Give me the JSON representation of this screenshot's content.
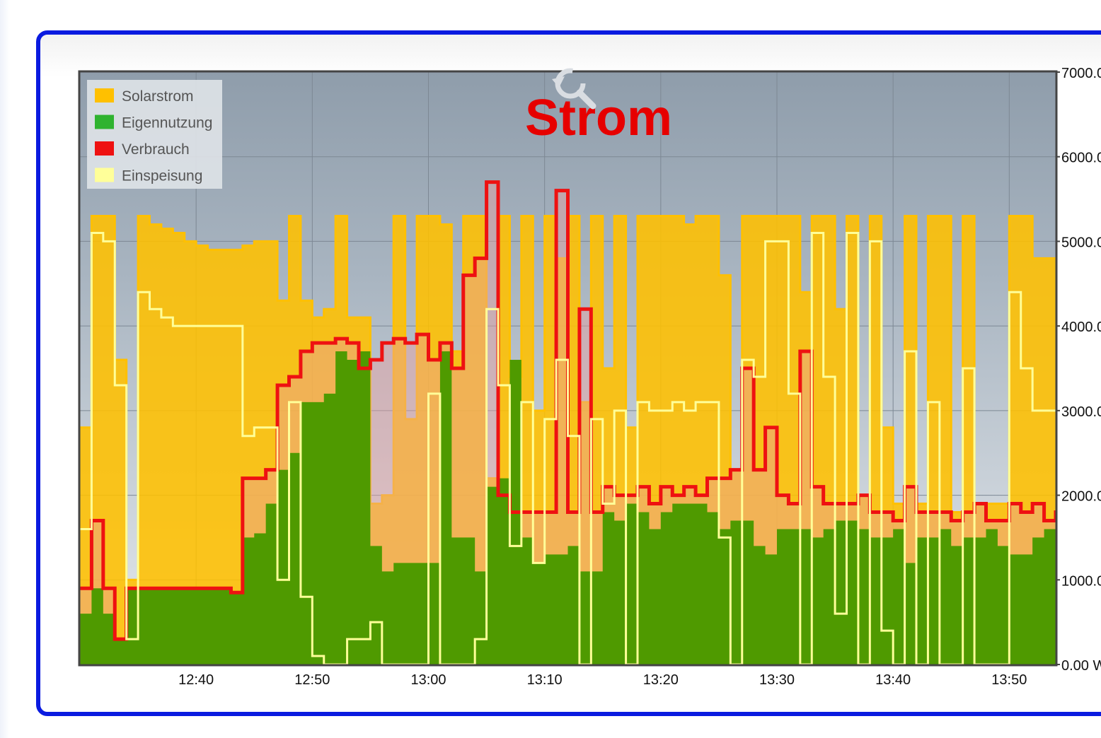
{
  "chart_data": {
    "type": "area",
    "title": "Strom",
    "xlabel": "",
    "ylabel": "",
    "x_ticks": [
      "12:40",
      "12:50",
      "13:00",
      "13:10",
      "13:20",
      "13:30",
      "13:40",
      "13:50"
    ],
    "xlim": [
      "12:30",
      "13:54"
    ],
    "y_ticks": [
      "0.00 W",
      "1000.0",
      "2000.0",
      "3000.0",
      "4000.0",
      "5000.0",
      "6000.0",
      "7000.0"
    ],
    "ylim": [
      0,
      7000
    ],
    "grid": true,
    "legend_position": "top-left",
    "x": [
      "12:30",
      "12:31",
      "12:32",
      "12:33",
      "12:34",
      "12:35",
      "12:36",
      "12:37",
      "12:38",
      "12:39",
      "12:40",
      "12:41",
      "12:42",
      "12:43",
      "12:44",
      "12:45",
      "12:46",
      "12:47",
      "12:48",
      "12:49",
      "12:50",
      "12:51",
      "12:52",
      "12:53",
      "12:54",
      "12:55",
      "12:56",
      "12:57",
      "12:58",
      "12:59",
      "13:00",
      "13:01",
      "13:02",
      "13:03",
      "13:04",
      "13:05",
      "13:06",
      "13:07",
      "13:08",
      "13:09",
      "13:10",
      "13:11",
      "13:12",
      "13:13",
      "13:14",
      "13:15",
      "13:16",
      "13:17",
      "13:18",
      "13:19",
      "13:20",
      "13:21",
      "13:22",
      "13:23",
      "13:24",
      "13:25",
      "13:26",
      "13:27",
      "13:28",
      "13:29",
      "13:30",
      "13:31",
      "13:32",
      "13:33",
      "13:34",
      "13:35",
      "13:36",
      "13:37",
      "13:38",
      "13:39",
      "13:40",
      "13:41",
      "13:42",
      "13:43",
      "13:44",
      "13:45",
      "13:46",
      "13:47",
      "13:48",
      "13:49",
      "13:50",
      "13:51",
      "13:52",
      "13:53",
      "13:54"
    ],
    "series": [
      {
        "name": "Solarstrom",
        "color": "#ffc000",
        "values": [
          2800,
          5300,
          5300,
          3600,
          1000,
          5300,
          5200,
          5150,
          5100,
          5000,
          4950,
          4900,
          4900,
          4900,
          4950,
          5000,
          5000,
          4300,
          5300,
          4300,
          4100,
          4200,
          5300,
          4100,
          4100,
          1900,
          2000,
          5300,
          2900,
          5300,
          5300,
          5200,
          3700,
          5300,
          5300,
          2200,
          5300,
          3400,
          5300,
          3000,
          5300,
          4800,
          5300,
          3100,
          5300,
          3500,
          5300,
          2800,
          5300,
          5300,
          5300,
          5300,
          5200,
          5300,
          5300,
          4600,
          2300,
          5300,
          5300,
          5300,
          5300,
          5300,
          4400,
          5300,
          5300,
          4200,
          5300,
          2000,
          5300,
          2800,
          1900,
          5300,
          1900,
          5300,
          5300,
          1800,
          5300,
          1900,
          1900,
          1900,
          5300,
          5300,
          4800,
          4800,
          4800
        ]
      },
      {
        "name": "Eigennutzung",
        "color": "#2fb32f",
        "values": [
          600,
          900,
          600,
          300,
          900,
          900,
          900,
          900,
          900,
          900,
          900,
          900,
          900,
          850,
          1500,
          1550,
          1900,
          2300,
          2500,
          3100,
          3100,
          3200,
          3700,
          3600,
          3700,
          1400,
          1100,
          1200,
          1200,
          1200,
          1200,
          3700,
          1500,
          1500,
          1100,
          2100,
          2200,
          3600,
          1500,
          1200,
          1300,
          1300,
          1400,
          1100,
          1100,
          1800,
          1700,
          1900,
          1800,
          1600,
          1800,
          1900,
          1900,
          1900,
          1800,
          1600,
          1700,
          1700,
          1400,
          1300,
          1600,
          1600,
          1600,
          1500,
          1600,
          1700,
          1700,
          1600,
          1500,
          1500,
          1600,
          1200,
          1500,
          1500,
          1600,
          1400,
          1500,
          1500,
          1600,
          1400,
          1300,
          1300,
          1500,
          1600,
          1600
        ]
      },
      {
        "name": "Verbrauch",
        "color": "#ee1111",
        "values": [
          900,
          1700,
          900,
          300,
          900,
          900,
          900,
          900,
          900,
          900,
          900,
          900,
          900,
          850,
          2200,
          2200,
          2300,
          3300,
          3400,
          3700,
          3800,
          3800,
          3850,
          3800,
          3500,
          3600,
          3800,
          3850,
          3800,
          3900,
          3600,
          3800,
          3500,
          4600,
          4800,
          5700,
          2000,
          1800,
          1800,
          1800,
          1800,
          5600,
          1800,
          4200,
          1800,
          2100,
          2000,
          2000,
          2100,
          1900,
          2100,
          2000,
          2100,
          2000,
          2200,
          2200,
          2300,
          3500,
          2300,
          2800,
          2000,
          1900,
          3700,
          2100,
          1900,
          1900,
          1900,
          2000,
          1800,
          1800,
          1700,
          2100,
          1800,
          1800,
          1800,
          1700,
          1800,
          1900,
          1700,
          1700,
          1900,
          1800,
          1900,
          1700,
          1800
        ]
      },
      {
        "name": "Einspeisung",
        "color": "#ffff99",
        "values": [
          1600,
          5100,
          5000,
          3300,
          300,
          4400,
          4200,
          4100,
          4000,
          4000,
          4000,
          4000,
          4000,
          4000,
          2700,
          2800,
          2800,
          1000,
          3100,
          800,
          100,
          0,
          0,
          300,
          300,
          500,
          0,
          0,
          0,
          0,
          3200,
          0,
          0,
          0,
          300,
          4200,
          3300,
          1400,
          3100,
          1200,
          2900,
          3600,
          2700,
          0,
          2900,
          1900,
          3000,
          0,
          3100,
          3000,
          3000,
          3100,
          3000,
          3100,
          3100,
          1500,
          0,
          3600,
          3400,
          5000,
          5000,
          3200,
          0,
          5100,
          3400,
          600,
          5100,
          0,
          5000,
          400,
          0,
          3700,
          0,
          3100,
          0,
          0,
          3500,
          0,
          0,
          0,
          4400,
          3500,
          3000,
          3000,
          3000
        ]
      }
    ]
  }
}
